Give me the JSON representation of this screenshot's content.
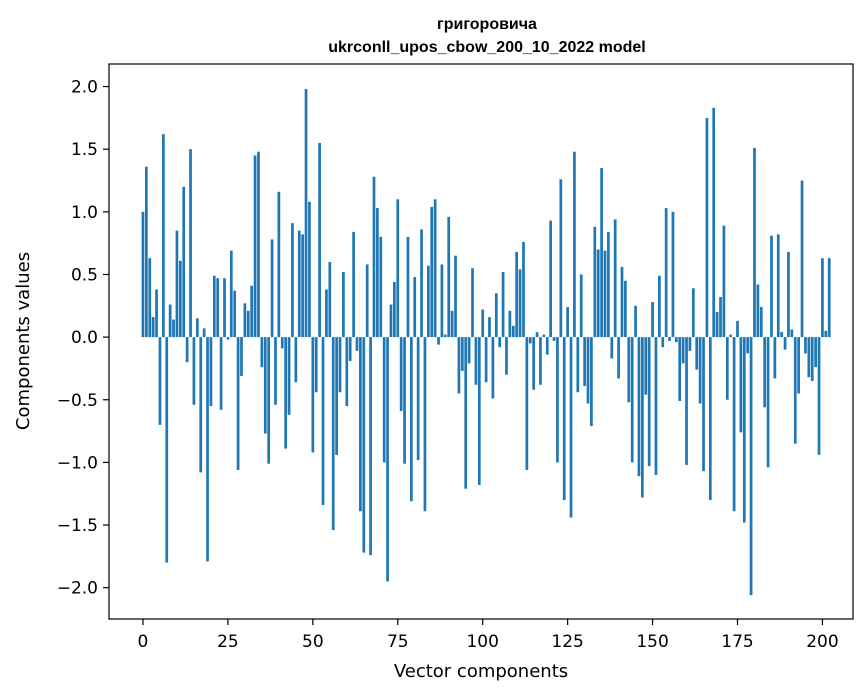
{
  "chart_data": {
    "type": "bar",
    "title_line1": "григоровича",
    "title_line2": "ukrconll_upos_cbow_200_10_2022 model",
    "xlabel": "Vector components",
    "ylabel": "Components values",
    "xlim": [
      -10,
      209
    ],
    "ylim": [
      -2.25,
      2.18
    ],
    "xticks": [
      0,
      25,
      50,
      75,
      100,
      125,
      150,
      175,
      200
    ],
    "yticks": [
      -2.0,
      -1.5,
      -1.0,
      -0.5,
      0.0,
      0.5,
      1.0,
      1.5,
      2.0
    ],
    "ytick_labels": [
      "−2.0",
      "−1.5",
      "−1.0",
      "−0.5",
      "0.0",
      "0.5",
      "1.0",
      "1.5",
      "2.0"
    ],
    "xtick_labels": [
      "0",
      "25",
      "50",
      "75",
      "100",
      "125",
      "150",
      "175",
      "200"
    ],
    "bar_color": "#1f77b4",
    "values": [
      1.0,
      1.36,
      0.63,
      0.16,
      0.38,
      -0.7,
      1.62,
      -1.8,
      0.26,
      0.14,
      0.85,
      0.61,
      1.2,
      -0.2,
      1.5,
      -0.54,
      0.15,
      -1.08,
      0.07,
      -1.79,
      -0.55,
      0.49,
      0.47,
      -0.58,
      0.47,
      -0.02,
      0.69,
      0.37,
      -1.06,
      -0.31,
      0.27,
      0.21,
      0.41,
      1.45,
      1.48,
      -0.24,
      -0.77,
      -1.01,
      0.78,
      -0.54,
      1.16,
      -0.09,
      -0.89,
      -0.62,
      0.91,
      -0.36,
      0.85,
      0.82,
      1.98,
      1.08,
      -0.92,
      -0.44,
      1.55,
      -1.34,
      0.38,
      0.6,
      -1.54,
      -0.94,
      -0.44,
      0.52,
      -0.55,
      -0.19,
      0.84,
      -0.11,
      -1.39,
      -1.72,
      0.58,
      -1.74,
      1.28,
      1.03,
      0.8,
      -1.0,
      -1.95,
      0.26,
      0.44,
      1.1,
      -0.59,
      -1.01,
      0.8,
      -1.31,
      0.48,
      -0.98,
      0.86,
      -1.39,
      0.57,
      1.04,
      1.1,
      -0.06,
      0.58,
      0.02,
      0.96,
      0.21,
      0.65,
      -0.45,
      -0.27,
      -1.21,
      -0.21,
      0.55,
      -0.38,
      -1.18,
      0.22,
      -0.36,
      0.16,
      -0.49,
      0.35,
      -0.08,
      0.52,
      -0.3,
      0.21,
      0.09,
      0.68,
      0.54,
      0.76,
      -1.06,
      -0.05,
      -0.42,
      0.04,
      -0.38,
      0.02,
      -0.14,
      0.93,
      -0.03,
      -1.0,
      1.26,
      -1.3,
      0.24,
      -1.44,
      1.48,
      -0.44,
      0.5,
      -0.39,
      -0.53,
      -0.71,
      0.88,
      0.7,
      1.35,
      0.69,
      0.84,
      -0.17,
      0.94,
      -0.33,
      0.56,
      0.45,
      -0.52,
      -1.0,
      0.25,
      -1.11,
      -1.28,
      -0.46,
      -1.03,
      0.28,
      -1.1,
      0.49,
      -0.08,
      1.03,
      -0.03,
      1.0,
      -0.04,
      -0.51,
      -0.21,
      -1.02,
      -0.11,
      0.39,
      -0.26,
      -0.53,
      -1.07,
      1.75,
      -1.3,
      1.83,
      0.2,
      0.32,
      0.89,
      -0.5,
      0.02,
      -1.39,
      0.13,
      -0.76,
      -1.48,
      -0.13,
      -2.06,
      1.51,
      0.42,
      0.24,
      -0.56,
      -1.04,
      0.81,
      -0.33,
      0.82,
      0.04,
      -0.1,
      0.68,
      0.06,
      -0.85,
      -0.45,
      1.25,
      -0.13,
      -0.32,
      -0.35,
      -0.24,
      -0.94,
      0.63,
      0.05,
      0.63
    ]
  }
}
